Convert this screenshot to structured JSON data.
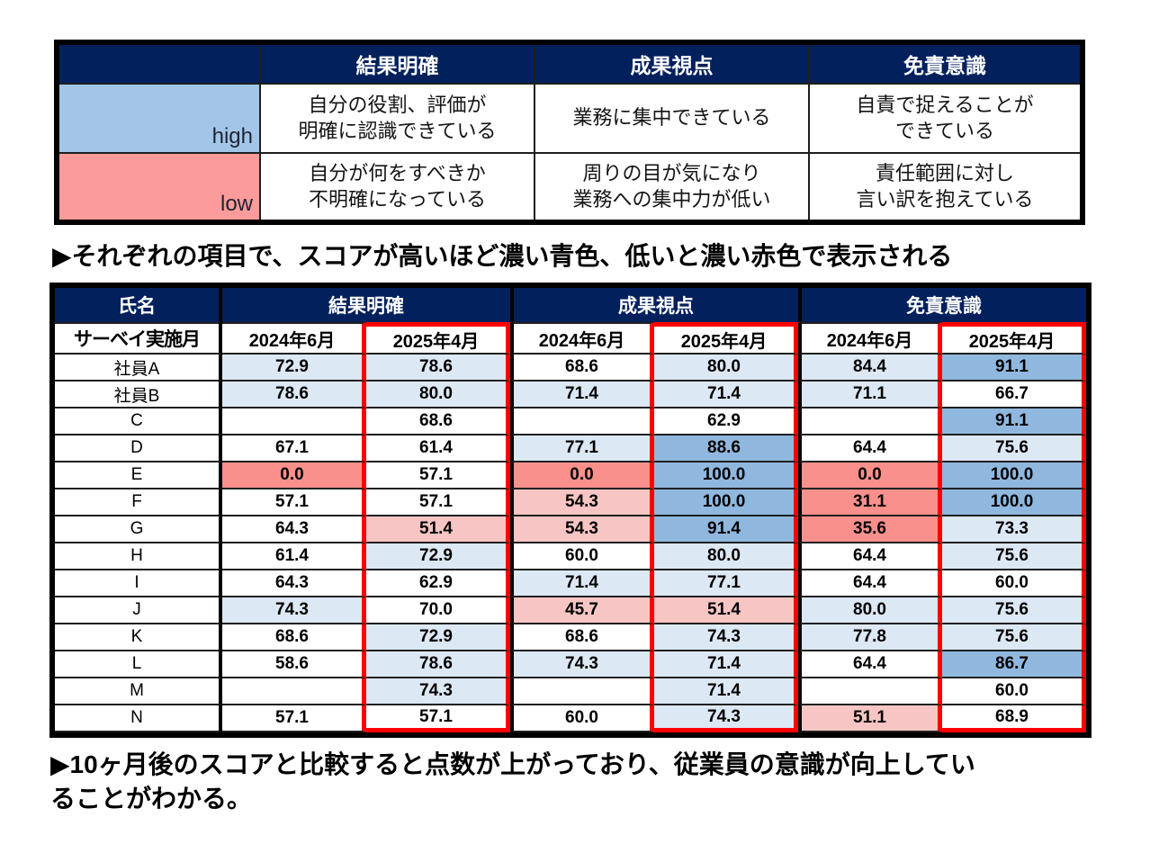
{
  "colors": {
    "navy": "#02205C",
    "grid_line": "#1F1F1F",
    "frame": "#000000",
    "highlight_border_red": "#FF0000",
    "legend_high_fill": "#A3C6E8",
    "legend_low_fill": "#FC9B9B",
    "score_blue_light": "#DCE8F4",
    "score_blue_medium": "#90B8DF",
    "score_pink_light": "#F7C6C4",
    "score_red_strong": "#F9908C"
  },
  "legend_table": {
    "corner_label": "",
    "columns": [
      "結果明確",
      "成果視点",
      "免責意識"
    ],
    "rows": [
      {
        "label": "high",
        "shade": "high",
        "cells": [
          "自分の役割、評価が\n明確に認識できている",
          "業務に集中できている",
          "自責で捉えることが\nできている"
        ]
      },
      {
        "label": "low",
        "shade": "low",
        "cells": [
          "自分が何をすべきか\n不明確になっている",
          "周りの目が気になり\n業務への集中力が低い",
          "責任範囲に対し\n言い訳を抱えている"
        ]
      }
    ]
  },
  "caption_top": "▶それぞれの項目で、スコアが高いほど濃い青色、低いと濃い赤色で表示される",
  "score_table": {
    "name_header": "氏名",
    "survey_row_label": "サーベイ実施月",
    "groups": [
      "結果明確",
      "成果視点",
      "免責意識"
    ],
    "months": [
      "2024年6月",
      "2025年4月"
    ],
    "highlighted_month": "2025年4月",
    "rows": [
      {
        "name": "社員A",
        "cells": [
          {
            "v": "72.9",
            "s": "b1"
          },
          {
            "v": "78.6",
            "s": "b1"
          },
          {
            "v": "68.6",
            "s": "w"
          },
          {
            "v": "80.0",
            "s": "b1"
          },
          {
            "v": "84.4",
            "s": "b1"
          },
          {
            "v": "91.1",
            "s": "b2"
          }
        ]
      },
      {
        "name": "社員B",
        "cells": [
          {
            "v": "78.6",
            "s": "b1"
          },
          {
            "v": "80.0",
            "s": "b1"
          },
          {
            "v": "71.4",
            "s": "b1"
          },
          {
            "v": "71.4",
            "s": "b1"
          },
          {
            "v": "71.1",
            "s": "b1"
          },
          {
            "v": "66.7",
            "s": "w"
          }
        ]
      },
      {
        "name": "C",
        "cells": [
          {
            "v": "",
            "s": "w"
          },
          {
            "v": "68.6",
            "s": "w"
          },
          {
            "v": "",
            "s": "w"
          },
          {
            "v": "62.9",
            "s": "w"
          },
          {
            "v": "",
            "s": "w"
          },
          {
            "v": "91.1",
            "s": "b2"
          }
        ]
      },
      {
        "name": "D",
        "cells": [
          {
            "v": "67.1",
            "s": "w"
          },
          {
            "v": "61.4",
            "s": "w"
          },
          {
            "v": "77.1",
            "s": "b1"
          },
          {
            "v": "88.6",
            "s": "b2"
          },
          {
            "v": "64.4",
            "s": "w"
          },
          {
            "v": "75.6",
            "s": "b1"
          }
        ]
      },
      {
        "name": "E",
        "cells": [
          {
            "v": "0.0",
            "s": "r2"
          },
          {
            "v": "57.1",
            "s": "w"
          },
          {
            "v": "0.0",
            "s": "r2"
          },
          {
            "v": "100.0",
            "s": "b2"
          },
          {
            "v": "0.0",
            "s": "r2"
          },
          {
            "v": "100.0",
            "s": "b2"
          }
        ]
      },
      {
        "name": "F",
        "cells": [
          {
            "v": "57.1",
            "s": "w"
          },
          {
            "v": "57.1",
            "s": "w"
          },
          {
            "v": "54.3",
            "s": "r1"
          },
          {
            "v": "100.0",
            "s": "b2"
          },
          {
            "v": "31.1",
            "s": "r2"
          },
          {
            "v": "100.0",
            "s": "b2"
          }
        ]
      },
      {
        "name": "G",
        "cells": [
          {
            "v": "64.3",
            "s": "w"
          },
          {
            "v": "51.4",
            "s": "r1"
          },
          {
            "v": "54.3",
            "s": "r1"
          },
          {
            "v": "91.4",
            "s": "b2"
          },
          {
            "v": "35.6",
            "s": "r2"
          },
          {
            "v": "73.3",
            "s": "b1"
          }
        ]
      },
      {
        "name": "H",
        "cells": [
          {
            "v": "61.4",
            "s": "w"
          },
          {
            "v": "72.9",
            "s": "b1"
          },
          {
            "v": "60.0",
            "s": "w"
          },
          {
            "v": "80.0",
            "s": "b1"
          },
          {
            "v": "64.4",
            "s": "w"
          },
          {
            "v": "75.6",
            "s": "b1"
          }
        ]
      },
      {
        "name": "I",
        "cells": [
          {
            "v": "64.3",
            "s": "w"
          },
          {
            "v": "62.9",
            "s": "w"
          },
          {
            "v": "71.4",
            "s": "b1"
          },
          {
            "v": "77.1",
            "s": "b1"
          },
          {
            "v": "64.4",
            "s": "w"
          },
          {
            "v": "60.0",
            "s": "w"
          }
        ]
      },
      {
        "name": "J",
        "cells": [
          {
            "v": "74.3",
            "s": "b1"
          },
          {
            "v": "70.0",
            "s": "w"
          },
          {
            "v": "45.7",
            "s": "r1"
          },
          {
            "v": "51.4",
            "s": "r1"
          },
          {
            "v": "80.0",
            "s": "b1"
          },
          {
            "v": "75.6",
            "s": "b1"
          }
        ]
      },
      {
        "name": "K",
        "cells": [
          {
            "v": "68.6",
            "s": "w"
          },
          {
            "v": "72.9",
            "s": "b1"
          },
          {
            "v": "68.6",
            "s": "w"
          },
          {
            "v": "74.3",
            "s": "b1"
          },
          {
            "v": "77.8",
            "s": "b1"
          },
          {
            "v": "75.6",
            "s": "b1"
          }
        ]
      },
      {
        "name": "L",
        "cells": [
          {
            "v": "58.6",
            "s": "w"
          },
          {
            "v": "78.6",
            "s": "b1"
          },
          {
            "v": "74.3",
            "s": "b1"
          },
          {
            "v": "71.4",
            "s": "b1"
          },
          {
            "v": "64.4",
            "s": "w"
          },
          {
            "v": "86.7",
            "s": "b2"
          }
        ]
      },
      {
        "name": "M",
        "cells": [
          {
            "v": "",
            "s": "w"
          },
          {
            "v": "74.3",
            "s": "b1"
          },
          {
            "v": "",
            "s": "w"
          },
          {
            "v": "71.4",
            "s": "b1"
          },
          {
            "v": "",
            "s": "w"
          },
          {
            "v": "60.0",
            "s": "w"
          }
        ]
      },
      {
        "name": "N",
        "cells": [
          {
            "v": "57.1",
            "s": "w"
          },
          {
            "v": "57.1",
            "s": "w"
          },
          {
            "v": "60.0",
            "s": "w"
          },
          {
            "v": "74.3",
            "s": "b1"
          },
          {
            "v": "51.1",
            "s": "r1"
          },
          {
            "v": "68.9",
            "s": "w"
          }
        ]
      }
    ]
  },
  "caption_bottom": "▶10ヶ月後のスコアと比較すると点数が上がっており、従業員の意識が向上してい\nることがわかる。"
}
